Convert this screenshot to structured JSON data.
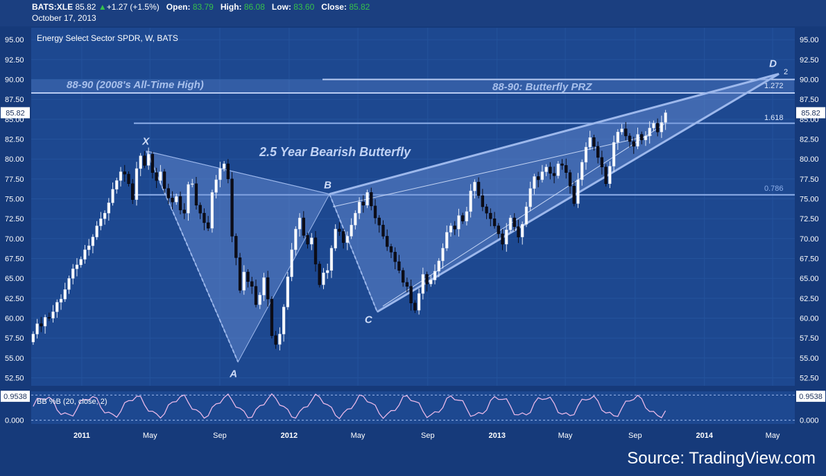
{
  "header": {
    "symbol": "BATS:XLE",
    "last": "85.82",
    "change_arrow": "▲",
    "change": "+1.27 (+1.5%)",
    "open_label": "Open:",
    "open": "83.79",
    "high_label": "High:",
    "high": "86.08",
    "low_label": "Low:",
    "low": "83.60",
    "close_label": "Close:",
    "close": "85.82",
    "date": "October 17, 2013"
  },
  "colors": {
    "background": "#163a7a",
    "plot_bg": "#1d4890",
    "candle_up": "#ffffff",
    "candle_down": "#0d0d18",
    "pattern_line": "#9db8ec",
    "pattern_fill": "#6f93d8",
    "green": "#36c14a",
    "oscillator": "#e8b8e8"
  },
  "chart_data": {
    "type": "candlestick",
    "title": "Energy Select Sector SPDR, W, BATS",
    "source": "Source: TradingView.com",
    "last_price_label": "85.82",
    "y_axis": {
      "ylim": [
        51.5,
        96.5
      ],
      "ticks": [
        "52.50",
        "55.00",
        "57.50",
        "60.00",
        "62.50",
        "65.00",
        "67.50",
        "70.00",
        "72.50",
        "75.00",
        "77.50",
        "80.00",
        "82.50",
        "85.00",
        "87.50",
        "90.00",
        "92.50",
        "95.00"
      ]
    },
    "x_axis": {
      "range": [
        "2010-10-04",
        "2014-06-09"
      ],
      "ticks": [
        {
          "label": "2011",
          "date": "2011-01-01"
        },
        {
          "label": "May",
          "date": "2011-05-01"
        },
        {
          "label": "Sep",
          "date": "2011-09-01"
        },
        {
          "label": "2012",
          "date": "2012-01-01"
        },
        {
          "label": "May",
          "date": "2012-05-01"
        },
        {
          "label": "Sep",
          "date": "2012-09-01"
        },
        {
          "label": "2013",
          "date": "2013-01-01"
        },
        {
          "label": "May",
          "date": "2013-05-01"
        },
        {
          "label": "Sep",
          "date": "2013-09-01"
        },
        {
          "label": "2014",
          "date": "2014-01-01"
        },
        {
          "label": "May",
          "date": "2014-05-01"
        }
      ]
    },
    "weekly_closes": {
      "start_date": "2010-10-04",
      "first_open": 57.0,
      "values": [
        58.0,
        59.3,
        59.0,
        60.1,
        60.0,
        60.8,
        62.0,
        62.4,
        63.6,
        65.0,
        66.2,
        66.7,
        67.4,
        68.6,
        69.1,
        70.2,
        71.6,
        72.5,
        73.2,
        74.5,
        76.2,
        77.3,
        78.4,
        78.1,
        76.9,
        74.9,
        78.8,
        80.4,
        79.2,
        80.6,
        78.3,
        77.3,
        78.4,
        76.3,
        75.1,
        74.6,
        75.3,
        73.6,
        73.2,
        76.8,
        76.9,
        74.2,
        73.2,
        72.0,
        71.3,
        75.8,
        77.4,
        78.8,
        79.4,
        77.5,
        70.3,
        67.6,
        63.5,
        65.8,
        64.6,
        64.0,
        61.7,
        62.9,
        65.1,
        62.4,
        57.8,
        56.7,
        58.0,
        61.4,
        65.2,
        68.6,
        71.2,
        72.6,
        70.4,
        69.3,
        70.1,
        66.8,
        64.2,
        65.7,
        66.0,
        68.8,
        71.2,
        70.9,
        69.5,
        70.3,
        71.7,
        73.2,
        74.6,
        74.2,
        75.8,
        74.1,
        72.6,
        71.7,
        70.3,
        69.0,
        68.3,
        67.1,
        66.0,
        64.5,
        64.0,
        61.9,
        61.0,
        63.1,
        65.5,
        64.3,
        64.8,
        65.9,
        67.2,
        68.8,
        70.8,
        71.6,
        71.2,
        72.9,
        72.2,
        73.4,
        76.0,
        77.1,
        75.4,
        74.0,
        73.2,
        72.5,
        71.6,
        70.6,
        69.3,
        71.1,
        72.6,
        71.5,
        70.2,
        71.8,
        74.0,
        76.3,
        77.8,
        77.4,
        78.4,
        79.0,
        78.2,
        77.9,
        79.4,
        79.2,
        78.3,
        76.6,
        74.4,
        77.4,
        79.6,
        81.5,
        82.7,
        81.6,
        80.2,
        79.0,
        76.9,
        79.1,
        82.1,
        83.4,
        83.8,
        82.9,
        82.2,
        81.6,
        83.1,
        82.4,
        82.9,
        83.9,
        84.5,
        83.4,
        84.6,
        85.82
      ]
    },
    "pattern": {
      "name": "2.5 Year Bearish Butterfly",
      "points": [
        {
          "label": "X",
          "date": "2011-04-25",
          "price": 81.0
        },
        {
          "label": "A",
          "date": "2011-10-03",
          "price": 54.5
        },
        {
          "label": "B",
          "date": "2012-03-12",
          "price": 75.6
        },
        {
          "label": "C",
          "date": "2012-06-04",
          "price": 60.8
        },
        {
          "label": "D",
          "date": "2014-05-12",
          "price": 90.7
        }
      ]
    },
    "levels": [
      {
        "label": "2",
        "price": 90.0
      },
      {
        "label": "1.272",
        "price": 88.3
      },
      {
        "label": "1.618",
        "price": 84.5
      },
      {
        "label": "0.786",
        "price": 75.5
      }
    ],
    "annotations": [
      {
        "text": "88-90 (2008's All-Time High)"
      },
      {
        "text": "88-90: Butterfly PRZ"
      },
      {
        "text": "2.5 Year Bearish Butterfly"
      }
    ],
    "oscillator": {
      "name": "BB %B (20, close, 2)",
      "current_label": "0.9538",
      "ticks": [
        "0.000"
      ],
      "ylim": [
        -0.15,
        1.15
      ]
    }
  }
}
